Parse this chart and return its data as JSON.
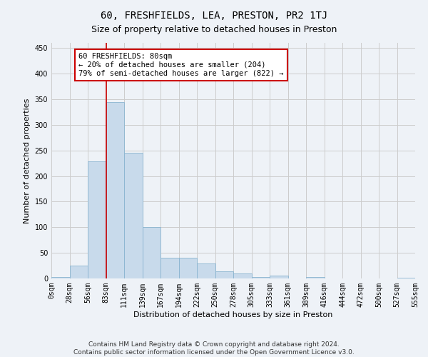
{
  "title": "60, FRESHFIELDS, LEA, PRESTON, PR2 1TJ",
  "subtitle": "Size of property relative to detached houses in Preston",
  "xlabel": "Distribution of detached houses by size in Preston",
  "ylabel": "Number of detached properties",
  "bar_values": [
    3,
    25,
    228,
    345,
    246,
    101,
    41,
    41,
    29,
    14,
    10,
    3,
    5,
    0,
    3,
    0,
    0,
    0,
    0,
    2
  ],
  "bar_color": "#c8daeb",
  "bar_edgecolor": "#8ab4d0",
  "categories": [
    "0sqm",
    "28sqm",
    "56sqm",
    "83sqm",
    "111sqm",
    "139sqm",
    "167sqm",
    "194sqm",
    "222sqm",
    "250sqm",
    "278sqm",
    "305sqm",
    "333sqm",
    "361sqm",
    "389sqm",
    "416sqm",
    "444sqm",
    "472sqm",
    "500sqm",
    "527sqm",
    "555sqm"
  ],
  "annotation_text": "60 FRESHFIELDS: 80sqm\n← 20% of detached houses are smaller (204)\n79% of semi-detached houses are larger (822) →",
  "annotation_box_color": "#ffffff",
  "annotation_box_edgecolor": "#cc0000",
  "vline_color": "#cc0000",
  "ylim": [
    0,
    460
  ],
  "yticks": [
    0,
    50,
    100,
    150,
    200,
    250,
    300,
    350,
    400,
    450
  ],
  "footer_line1": "Contains HM Land Registry data © Crown copyright and database right 2024.",
  "footer_line2": "Contains public sector information licensed under the Open Government Licence v3.0.",
  "background_color": "#eef2f7",
  "plot_background_color": "#eef2f7",
  "grid_color": "#cccccc",
  "title_fontsize": 10,
  "subtitle_fontsize": 9,
  "axis_label_fontsize": 8,
  "tick_fontsize": 7,
  "footer_fontsize": 6.5,
  "vline_x": 3.0
}
